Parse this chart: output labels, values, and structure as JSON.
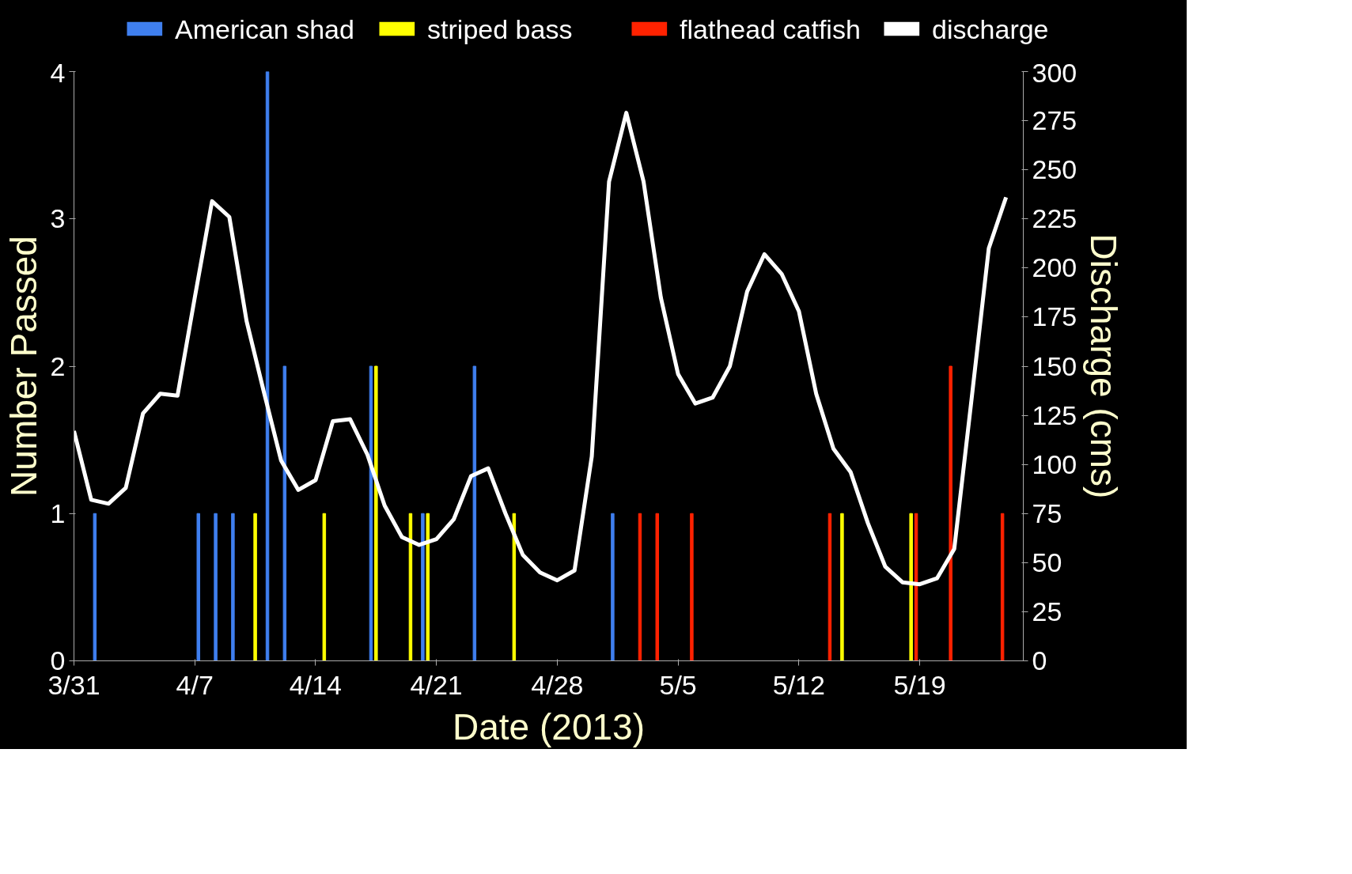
{
  "chart_data": {
    "type": "bar",
    "xlabel": "Date (2013)",
    "ylabel": "Number Passed",
    "y2label": "Discharge (cms)",
    "xlim": [
      "2013-03-31",
      "2013-05-25"
    ],
    "xticks": [
      {
        "value": "2013-03-31",
        "label": "3/31"
      },
      {
        "value": "2013-04-07",
        "label": "4/7"
      },
      {
        "value": "2013-04-14",
        "label": "4/14"
      },
      {
        "value": "2013-04-21",
        "label": "4/21"
      },
      {
        "value": "2013-04-28",
        "label": "4/28"
      },
      {
        "value": "2013-05-05",
        "label": "5/5"
      },
      {
        "value": "2013-05-12",
        "label": "5/12"
      },
      {
        "value": "2013-05-19",
        "label": "5/19"
      }
    ],
    "ylim": [
      0,
      4
    ],
    "yticks": [
      0,
      1,
      2,
      3,
      4
    ],
    "y2lim": [
      0,
      300
    ],
    "y2ticks": [
      0,
      25,
      50,
      75,
      100,
      125,
      150,
      175,
      200,
      225,
      250,
      275,
      300
    ],
    "grid": false,
    "legend": "top",
    "series": [
      {
        "name": "American shad",
        "color": "#3f7fef",
        "x": [
          "2013-04-01T05:00",
          "2013-04-07T05:00",
          "2013-04-08T05:00",
          "2013-04-09T05:00",
          "2013-04-11T05:00",
          "2013-04-12T05:00",
          "2013-04-17T05:00",
          "2013-04-20T05:00",
          "2013-04-23T05:00",
          "2013-05-01T05:00"
        ],
        "values": [
          1,
          1,
          1,
          1,
          4,
          2,
          2,
          1,
          2,
          1
        ]
      },
      {
        "name": "striped bass",
        "color": "#ffff00",
        "x": [
          "2013-04-10T12:00",
          "2013-04-14T12:00",
          "2013-04-17T12:00",
          "2013-04-19T12:00",
          "2013-04-20T12:00",
          "2013-04-25T12:00",
          "2013-05-14T12:00",
          "2013-05-18T12:00"
        ],
        "values": [
          1,
          1,
          2,
          1,
          1,
          1,
          1,
          1
        ]
      },
      {
        "name": "flathead catfish",
        "color": "#ff2200",
        "x": [
          "2013-05-02T19:00",
          "2013-05-03T19:00",
          "2013-05-05T19:00",
          "2013-05-13T19:00",
          "2013-05-18T19:00",
          "2013-05-20T19:00",
          "2013-05-23T19:00"
        ],
        "values": [
          1,
          1,
          1,
          1,
          1,
          2,
          1
        ]
      },
      {
        "name": "discharge",
        "type": "line",
        "axis": "y2",
        "color": "#ffffff",
        "x": [
          "2013-03-31",
          "2013-04-01",
          "2013-04-02",
          "2013-04-03",
          "2013-04-04",
          "2013-04-05",
          "2013-04-06",
          "2013-04-07",
          "2013-04-08",
          "2013-04-09",
          "2013-04-10",
          "2013-04-11",
          "2013-04-12",
          "2013-04-13",
          "2013-04-14",
          "2013-04-15",
          "2013-04-16",
          "2013-04-17",
          "2013-04-18",
          "2013-04-19",
          "2013-04-20",
          "2013-04-21",
          "2013-04-22",
          "2013-04-23",
          "2013-04-24",
          "2013-04-25",
          "2013-04-26",
          "2013-04-27",
          "2013-04-28",
          "2013-04-29",
          "2013-04-30",
          "2013-05-01",
          "2013-05-02",
          "2013-05-03",
          "2013-05-04",
          "2013-05-05",
          "2013-05-06",
          "2013-05-07",
          "2013-05-08",
          "2013-05-09",
          "2013-05-10",
          "2013-05-11",
          "2013-05-12",
          "2013-05-13",
          "2013-05-14",
          "2013-05-15",
          "2013-05-16",
          "2013-05-17",
          "2013-05-18",
          "2013-05-19",
          "2013-05-20",
          "2013-05-21",
          "2013-05-22",
          "2013-05-23",
          "2013-05-24"
        ],
        "values": [
          117,
          82,
          80,
          88,
          126,
          136,
          135,
          185,
          234,
          226,
          173,
          137,
          102,
          87,
          92,
          122,
          123,
          105,
          79,
          63,
          59,
          62,
          72,
          94,
          98,
          75,
          54,
          45,
          41,
          46,
          104,
          244,
          279,
          244,
          185,
          146,
          131,
          134,
          150,
          188,
          207,
          197,
          178,
          136,
          108,
          96,
          70,
          48,
          40,
          39,
          42,
          57,
          133,
          210,
          236
        ]
      }
    ]
  }
}
